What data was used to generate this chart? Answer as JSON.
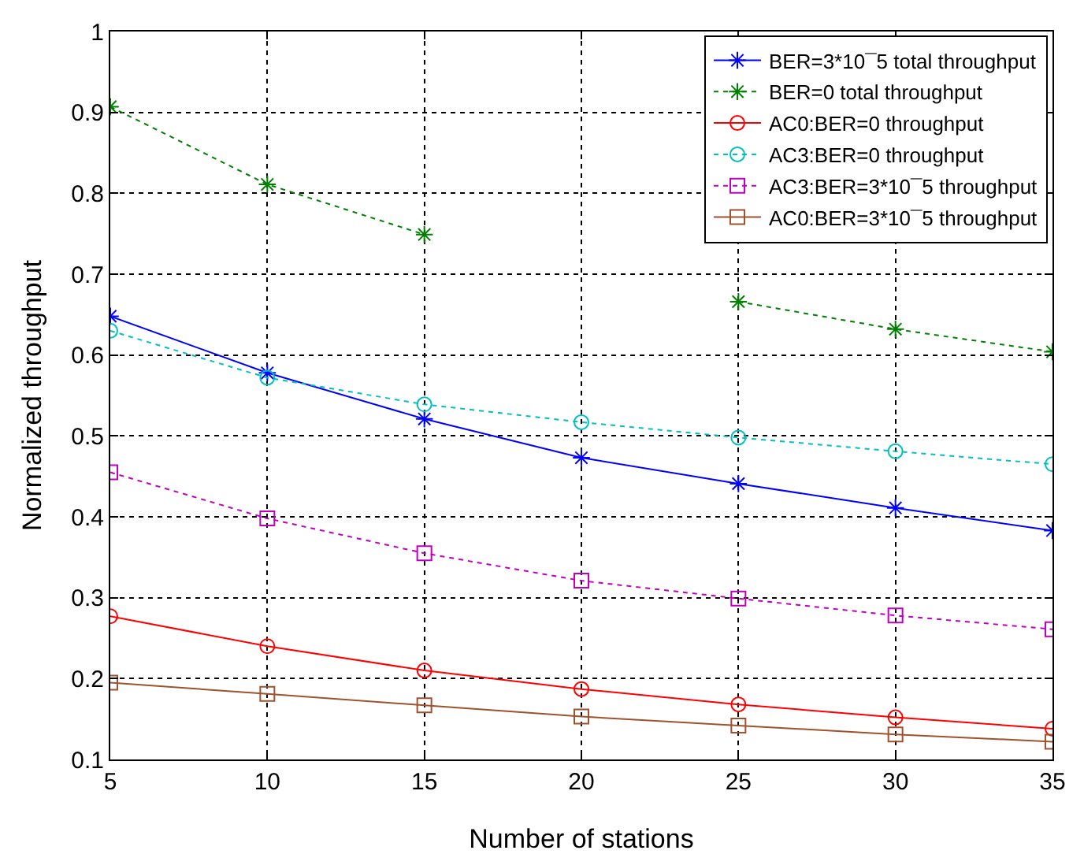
{
  "chart_data": {
    "type": "line",
    "xlabel": "Number of stations",
    "ylabel": "Normalized throughput",
    "x": [
      5,
      10,
      15,
      20,
      25,
      30,
      35
    ],
    "xlim": [
      5,
      35
    ],
    "xticks": [
      5,
      10,
      15,
      20,
      25,
      30,
      35
    ],
    "ylim": [
      0.1,
      1
    ],
    "yticks": [
      0.1,
      0.2,
      0.3,
      0.4,
      0.5,
      0.6,
      0.7,
      0.8,
      0.9,
      1
    ],
    "grid": true,
    "legend": "top right",
    "series": [
      {
        "name": "BER=3*10¯5 total throughput",
        "color": "#0000ff",
        "marker": "cross",
        "line_style": "solid",
        "values": [
          0.648,
          0.578,
          0.521,
          0.473,
          0.441,
          0.411,
          0.383
        ]
      },
      {
        "name": "BER=0 total throughput",
        "color": "#008000",
        "marker": "cross",
        "line_style": "dotted",
        "values": [
          0.907,
          0.811,
          0.749,
          null,
          0.666,
          0.632,
          0.604
        ]
      },
      {
        "name": "AC0:BER=0 throughput",
        "color": "#ff0000",
        "marker": "circle",
        "line_style": "solid",
        "values": [
          0.277,
          0.24,
          0.21,
          0.187,
          0.168,
          0.152,
          0.138
        ]
      },
      {
        "name": "AC3:BER=0 throughput",
        "color": "#00bfbf",
        "marker": "circle",
        "line_style": "dotted",
        "values": [
          0.63,
          0.572,
          0.539,
          0.517,
          0.498,
          0.481,
          0.465
        ]
      },
      {
        "name": "AC3:BER=3*10¯5 throughput",
        "color": "#bf00bf",
        "marker": "square",
        "line_style": "dotted",
        "values": [
          0.455,
          0.398,
          0.355,
          0.321,
          0.299,
          0.278,
          0.261
        ]
      },
      {
        "name": "AC0:BER=3*10¯5 throughput",
        "color": "#a0522d",
        "marker": "square",
        "line_style": "solid",
        "values": [
          0.195,
          0.181,
          0.167,
          0.153,
          0.142,
          0.131,
          0.122
        ]
      }
    ]
  }
}
